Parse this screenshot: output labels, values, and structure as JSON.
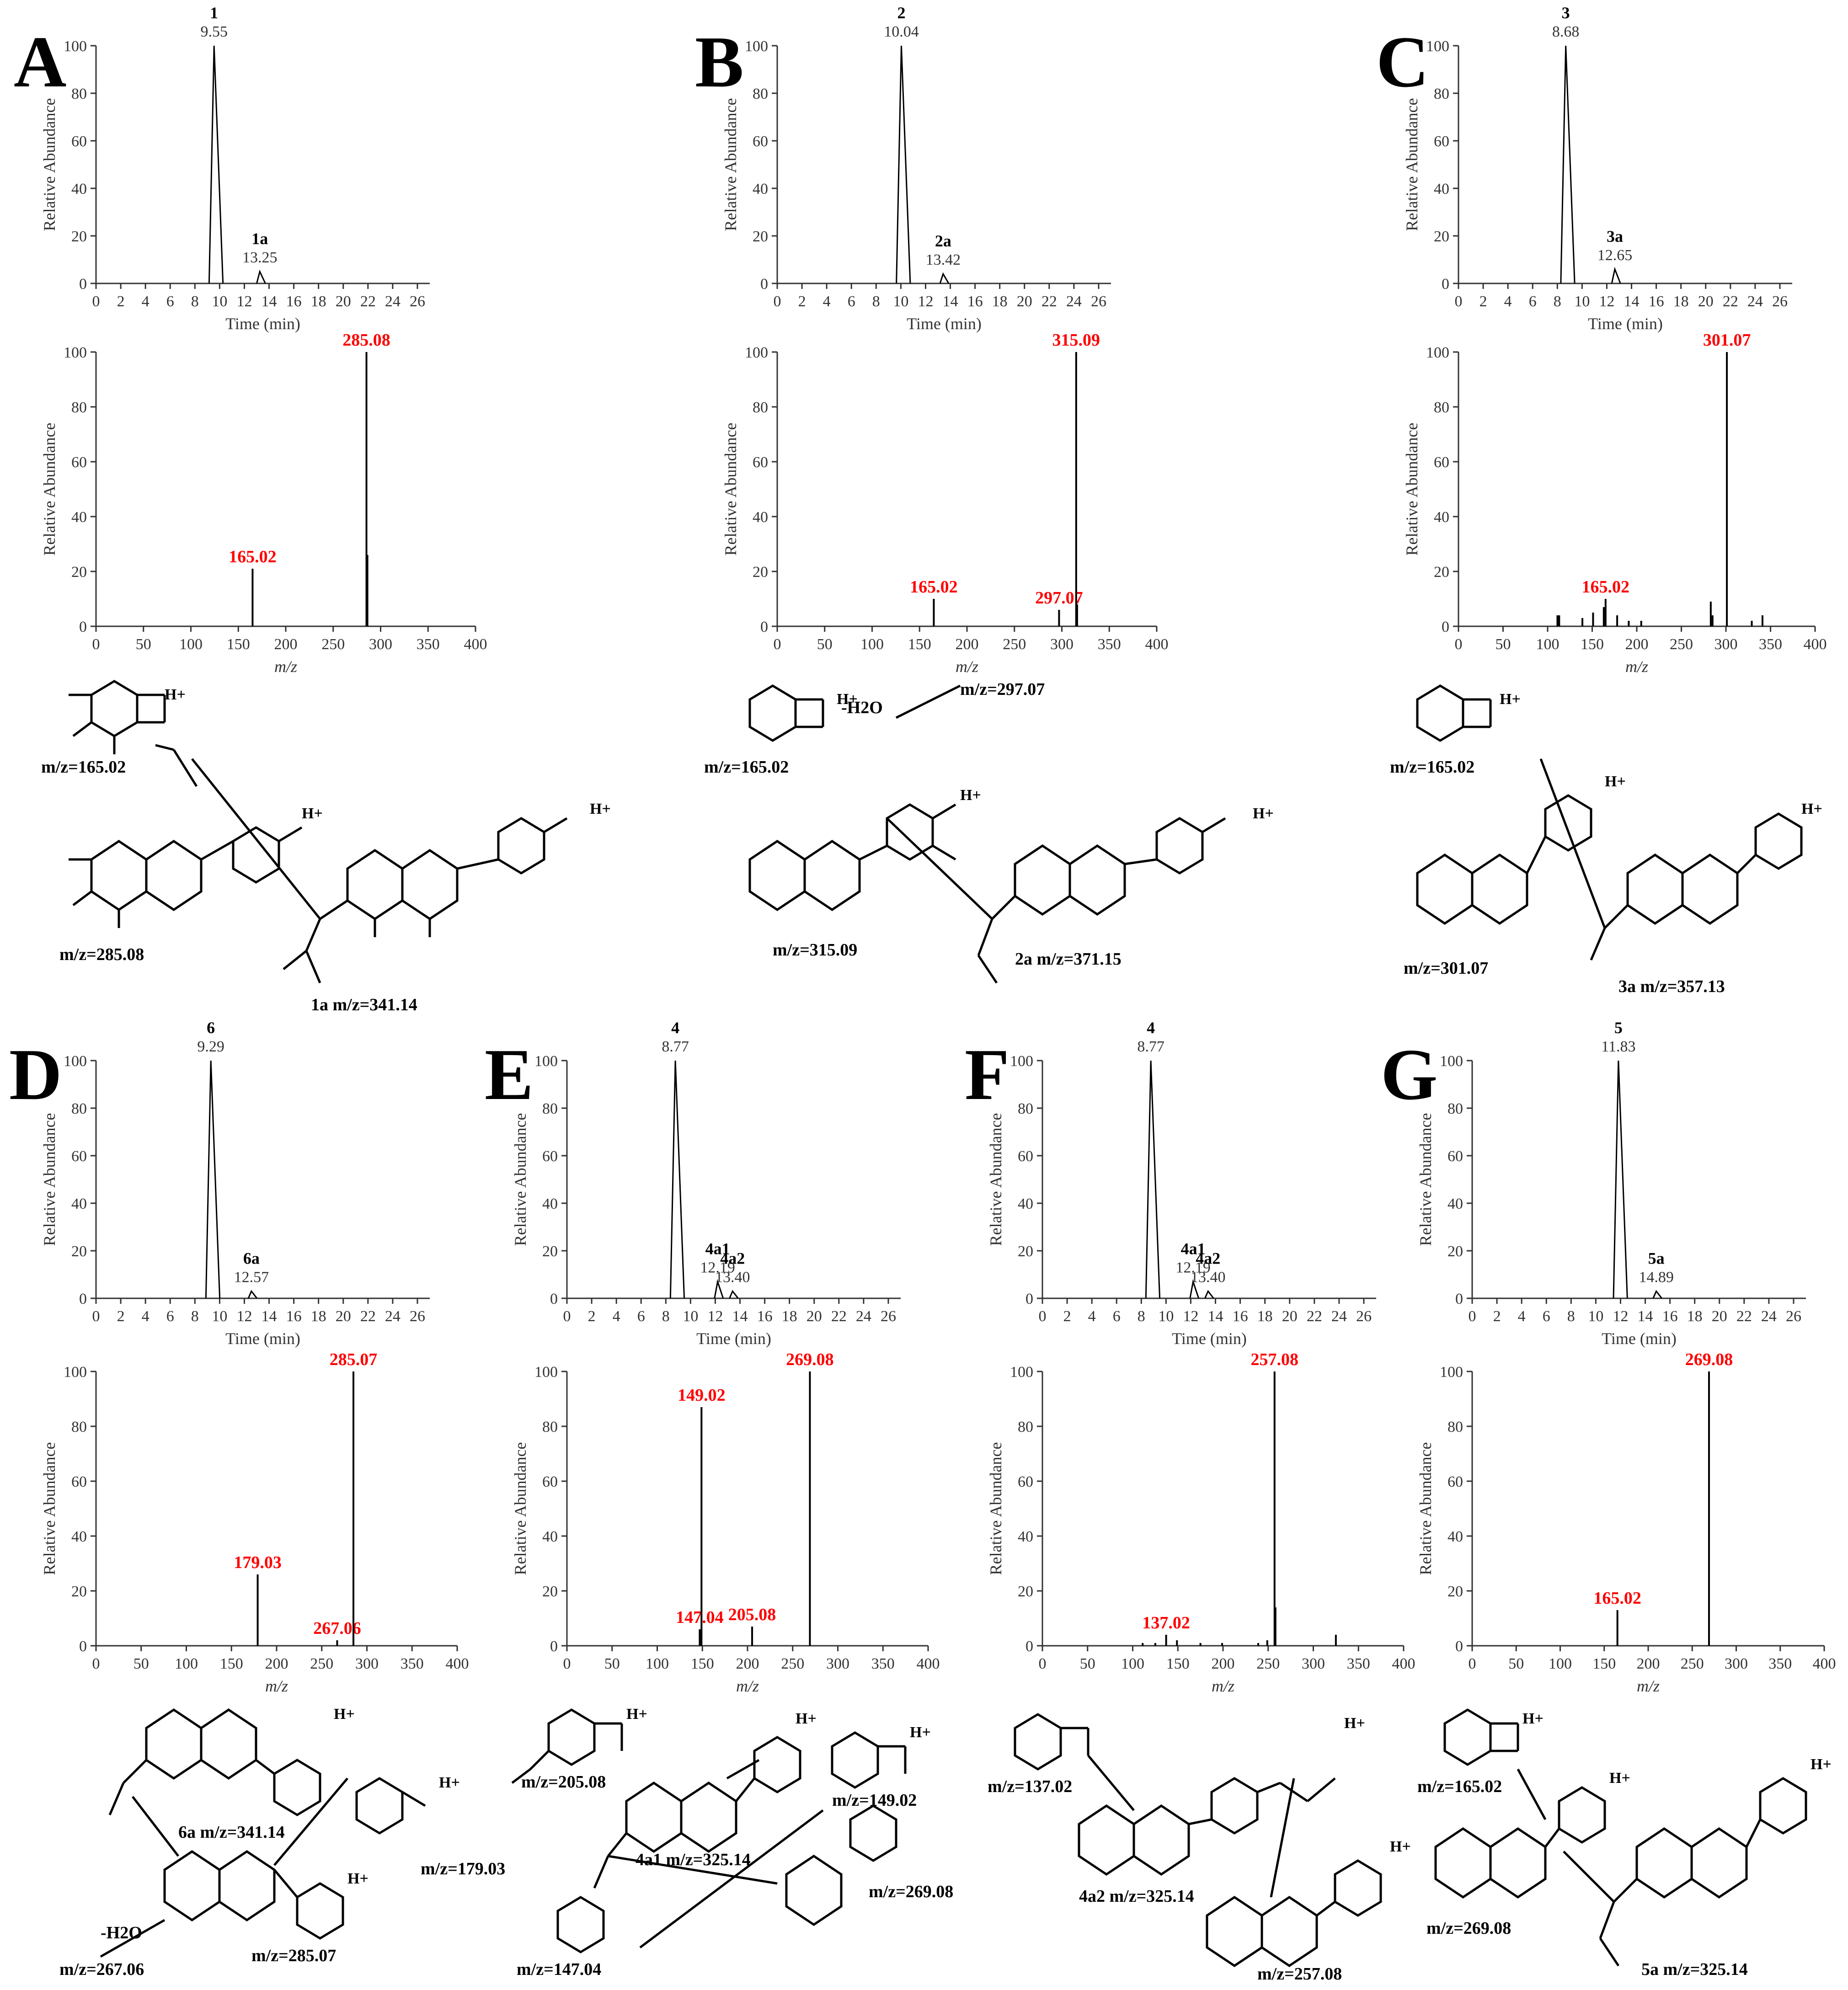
{
  "chart_data": [
    {
      "panel": "A",
      "type": "line",
      "kind": "chromatogram",
      "xlabel": "Time (min)",
      "ylabel": "Relative Abundance",
      "xlim": [
        0,
        27
      ],
      "ylim": [
        0,
        100
      ],
      "xticks": [
        0,
        2,
        4,
        6,
        8,
        10,
        12,
        14,
        16,
        18,
        20,
        22,
        24,
        26
      ],
      "yticks": [
        0,
        20,
        40,
        60,
        80,
        100
      ],
      "peaks": [
        {
          "label": "1",
          "rt": "9.55",
          "x": 9.55,
          "height": 100
        },
        {
          "label": "1a",
          "rt": "13.25",
          "x": 13.25,
          "height": 5
        }
      ]
    },
    {
      "panel": "A",
      "type": "bar",
      "kind": "ms-spectrum",
      "xlabel": "m/z",
      "ylabel": "Relative Abundance",
      "xlim": [
        0,
        400
      ],
      "ylim": [
        0,
        100
      ],
      "xticks": [
        0,
        50,
        100,
        150,
        200,
        250,
        300,
        350,
        400
      ],
      "yticks": [
        0,
        20,
        40,
        60,
        80,
        100
      ],
      "peaks": [
        {
          "mz": 165.02,
          "intensity": 21,
          "label": "165.02"
        },
        {
          "mz": 285.08,
          "intensity": 100,
          "label": "285.08"
        },
        {
          "mz": 286.1,
          "intensity": 26
        }
      ]
    },
    {
      "panel": "B",
      "type": "line",
      "kind": "chromatogram",
      "xlabel": "Time (min)",
      "ylabel": "Relative Abundance",
      "xlim": [
        0,
        27
      ],
      "ylim": [
        0,
        100
      ],
      "xticks": [
        0,
        2,
        4,
        6,
        8,
        10,
        12,
        14,
        16,
        18,
        20,
        22,
        24,
        26
      ],
      "yticks": [
        0,
        20,
        40,
        60,
        80,
        100
      ],
      "peaks": [
        {
          "label": "2",
          "rt": "10.04",
          "x": 10.04,
          "height": 100
        },
        {
          "label": "2a",
          "rt": "13.42",
          "x": 13.42,
          "height": 4
        }
      ]
    },
    {
      "panel": "B",
      "type": "bar",
      "kind": "ms-spectrum",
      "xlabel": "m/z",
      "ylabel": "Relative Abundance",
      "xlim": [
        0,
        400
      ],
      "ylim": [
        0,
        100
      ],
      "xticks": [
        0,
        50,
        100,
        150,
        200,
        250,
        300,
        350,
        400
      ],
      "yticks": [
        0,
        20,
        40,
        60,
        80,
        100
      ],
      "peaks": [
        {
          "mz": 165.02,
          "intensity": 10,
          "label": "165.02"
        },
        {
          "mz": 297.07,
          "intensity": 6,
          "label": "297.07"
        },
        {
          "mz": 315.09,
          "intensity": 100,
          "label": "315.09"
        },
        {
          "mz": 316.1,
          "intensity": 8
        }
      ]
    },
    {
      "panel": "C",
      "type": "line",
      "kind": "chromatogram",
      "xlabel": "Time (min)",
      "ylabel": "Relative Abundance",
      "xlim": [
        0,
        27
      ],
      "ylim": [
        0,
        100
      ],
      "xticks": [
        0,
        2,
        4,
        6,
        8,
        10,
        12,
        14,
        16,
        18,
        20,
        22,
        24,
        26
      ],
      "yticks": [
        0,
        20,
        40,
        60,
        80,
        100
      ],
      "peaks": [
        {
          "label": "3",
          "rt": "8.68",
          "x": 8.68,
          "height": 100
        },
        {
          "label": "3a",
          "rt": "12.65",
          "x": 12.65,
          "height": 6
        }
      ]
    },
    {
      "panel": "C",
      "type": "bar",
      "kind": "ms-spectrum",
      "xlabel": "m/z",
      "ylabel": "Relative Abundance",
      "xlim": [
        0,
        400
      ],
      "ylim": [
        0,
        100
      ],
      "xticks": [
        0,
        50,
        100,
        150,
        200,
        250,
        300,
        350,
        400
      ],
      "yticks": [
        0,
        20,
        40,
        60,
        80,
        100
      ],
      "peaks": [
        {
          "mz": 111,
          "intensity": 4
        },
        {
          "mz": 113,
          "intensity": 4
        },
        {
          "mz": 139,
          "intensity": 3
        },
        {
          "mz": 151,
          "intensity": 5
        },
        {
          "mz": 163,
          "intensity": 7
        },
        {
          "mz": 165.02,
          "intensity": 10,
          "label": "165.02"
        },
        {
          "mz": 178,
          "intensity": 4
        },
        {
          "mz": 191,
          "intensity": 2
        },
        {
          "mz": 205,
          "intensity": 2
        },
        {
          "mz": 283,
          "intensity": 9
        },
        {
          "mz": 285,
          "intensity": 4
        },
        {
          "mz": 301.07,
          "intensity": 100,
          "label": "301.07"
        },
        {
          "mz": 329,
          "intensity": 2
        },
        {
          "mz": 341,
          "intensity": 4
        }
      ]
    },
    {
      "panel": "D",
      "type": "line",
      "kind": "chromatogram",
      "xlabel": "Time (min)",
      "ylabel": "Relative Abundance",
      "xlim": [
        0,
        27
      ],
      "ylim": [
        0,
        100
      ],
      "xticks": [
        0,
        2,
        4,
        6,
        8,
        10,
        12,
        14,
        16,
        18,
        20,
        22,
        24,
        26
      ],
      "yticks": [
        0,
        20,
        40,
        60,
        80,
        100
      ],
      "peaks": [
        {
          "label": "6",
          "rt": "9.29",
          "x": 9.29,
          "height": 100
        },
        {
          "label": "6a",
          "rt": "12.57",
          "x": 12.57,
          "height": 3
        }
      ]
    },
    {
      "panel": "D",
      "type": "bar",
      "kind": "ms-spectrum",
      "xlabel": "m/z",
      "ylabel": "Relative Abundance",
      "xlim": [
        0,
        400
      ],
      "ylim": [
        0,
        100
      ],
      "xticks": [
        0,
        50,
        100,
        150,
        200,
        250,
        300,
        350,
        400
      ],
      "yticks": [
        0,
        20,
        40,
        60,
        80,
        100
      ],
      "peaks": [
        {
          "mz": 179.03,
          "intensity": 26,
          "label": "179.03"
        },
        {
          "mz": 267.06,
          "intensity": 2,
          "label": "267.06"
        },
        {
          "mz": 285.07,
          "intensity": 100,
          "label": "285.07"
        }
      ]
    },
    {
      "panel": "E",
      "type": "line",
      "kind": "chromatogram",
      "xlabel": "Time (min)",
      "ylabel": "Relative Abundance",
      "xlim": [
        0,
        27
      ],
      "ylim": [
        0,
        100
      ],
      "xticks": [
        0,
        2,
        4,
        6,
        8,
        10,
        12,
        14,
        16,
        18,
        20,
        22,
        24,
        26
      ],
      "yticks": [
        0,
        20,
        40,
        60,
        80,
        100
      ],
      "peaks": [
        {
          "label": "4",
          "rt": "8.77",
          "x": 8.77,
          "height": 100
        },
        {
          "label": "4a1",
          "rt": "12.19",
          "x": 12.19,
          "height": 7
        },
        {
          "label": "4a2",
          "rt": "13.40",
          "x": 13.4,
          "height": 3
        }
      ]
    },
    {
      "panel": "E",
      "type": "bar",
      "kind": "ms-spectrum",
      "xlabel": "m/z",
      "ylabel": "Relative Abundance",
      "xlim": [
        0,
        400
      ],
      "ylim": [
        0,
        100
      ],
      "xticks": [
        0,
        50,
        100,
        150,
        200,
        250,
        300,
        350,
        400
      ],
      "yticks": [
        0,
        20,
        40,
        60,
        80,
        100
      ],
      "peaks": [
        {
          "mz": 147.04,
          "intensity": 6,
          "label": "147.04"
        },
        {
          "mz": 149.02,
          "intensity": 87,
          "label": "149.02"
        },
        {
          "mz": 205.08,
          "intensity": 7,
          "label": "205.08"
        },
        {
          "mz": 269.08,
          "intensity": 100,
          "label": "269.08"
        }
      ]
    },
    {
      "panel": "F",
      "type": "line",
      "kind": "chromatogram",
      "xlabel": "Time (min)",
      "ylabel": "Relative Abundance",
      "xlim": [
        0,
        27
      ],
      "ylim": [
        0,
        100
      ],
      "xticks": [
        0,
        2,
        4,
        6,
        8,
        10,
        12,
        14,
        16,
        18,
        20,
        22,
        24,
        26
      ],
      "yticks": [
        0,
        20,
        40,
        60,
        80,
        100
      ],
      "peaks": [
        {
          "label": "4",
          "rt": "8.77",
          "x": 8.77,
          "height": 100
        },
        {
          "label": "4a1",
          "rt": "12.19",
          "x": 12.19,
          "height": 7
        },
        {
          "label": "4a2",
          "rt": "13.40",
          "x": 13.4,
          "height": 3
        }
      ]
    },
    {
      "panel": "F",
      "type": "bar",
      "kind": "ms-spectrum",
      "xlabel": "m/z",
      "ylabel": "Relative Abundance",
      "xlim": [
        0,
        400
      ],
      "ylim": [
        0,
        100
      ],
      "xticks": [
        0,
        50,
        100,
        150,
        200,
        250,
        300,
        350,
        400
      ],
      "yticks": [
        0,
        20,
        40,
        60,
        80,
        100
      ],
      "peaks": [
        {
          "mz": 111,
          "intensity": 1
        },
        {
          "mz": 125,
          "intensity": 1
        },
        {
          "mz": 137.02,
          "intensity": 4,
          "label": "137.02"
        },
        {
          "mz": 149,
          "intensity": 2
        },
        {
          "mz": 175,
          "intensity": 1
        },
        {
          "mz": 199,
          "intensity": 1
        },
        {
          "mz": 239,
          "intensity": 1
        },
        {
          "mz": 249,
          "intensity": 2
        },
        {
          "mz": 257.08,
          "intensity": 100,
          "label": "257.08"
        },
        {
          "mz": 258.1,
          "intensity": 14
        },
        {
          "mz": 325,
          "intensity": 4
        }
      ]
    },
    {
      "panel": "G",
      "type": "line",
      "kind": "chromatogram",
      "xlabel": "Time (min)",
      "ylabel": "Relative Abundance",
      "xlim": [
        0,
        27
      ],
      "ylim": [
        0,
        100
      ],
      "xticks": [
        0,
        2,
        4,
        6,
        8,
        10,
        12,
        14,
        16,
        18,
        20,
        22,
        24,
        26
      ],
      "yticks": [
        0,
        20,
        40,
        60,
        80,
        100
      ],
      "peaks": [
        {
          "label": "5",
          "rt": "11.83",
          "x": 11.83,
          "height": 100
        },
        {
          "label": "5a",
          "rt": "14.89",
          "x": 14.89,
          "height": 3
        }
      ]
    },
    {
      "panel": "G",
      "type": "bar",
      "kind": "ms-spectrum",
      "xlabel": "m/z",
      "ylabel": "Relative Abundance",
      "xlim": [
        0,
        400
      ],
      "ylim": [
        0,
        100
      ],
      "xticks": [
        0,
        50,
        100,
        150,
        200,
        250,
        300,
        350,
        400
      ],
      "yticks": [
        0,
        20,
        40,
        60,
        80,
        100
      ],
      "peaks": [
        {
          "mz": 165.02,
          "intensity": 13,
          "label": "165.02"
        },
        {
          "mz": 269.08,
          "intensity": 100,
          "label": "269.08"
        }
      ]
    }
  ],
  "panels": [
    "A",
    "B",
    "C",
    "D",
    "E",
    "F",
    "G"
  ],
  "colors": {
    "fragment_label": "#ff0000",
    "axis": "#333333",
    "trace": "#000000"
  },
  "structures": {
    "A": {
      "fragments": [
        "m/z=165.02",
        "m/z=285.08",
        "1a m/z=341.14"
      ],
      "charge": "H+"
    },
    "B": {
      "fragments": [
        "m/z=165.02",
        "-H2O",
        "m/z=297.07",
        "m/z=315.09",
        "2a m/z=371.15"
      ],
      "charge": "H+"
    },
    "C": {
      "fragments": [
        "m/z=165.02",
        "m/z=301.07",
        "3a m/z=357.13"
      ],
      "charge": "H+"
    },
    "D": {
      "fragments": [
        "6a m/z=341.14",
        "m/z=179.03",
        "-H2O",
        "m/z=267.06",
        "m/z=285.07"
      ],
      "charge": "H+"
    },
    "E": {
      "fragments": [
        "m/z=205.08",
        "4a1 m/z=325.14",
        "m/z=149.02",
        "m/z=269.08",
        "m/z=147.04"
      ],
      "charge": "H+"
    },
    "F": {
      "fragments": [
        "m/z=137.02",
        "4a2 m/z=325.14",
        "m/z=257.08"
      ],
      "charge": "H+"
    },
    "G": {
      "fragments": [
        "m/z=165.02",
        "m/z=269.08",
        "5a m/z=325.14"
      ],
      "charge": "H+"
    }
  }
}
